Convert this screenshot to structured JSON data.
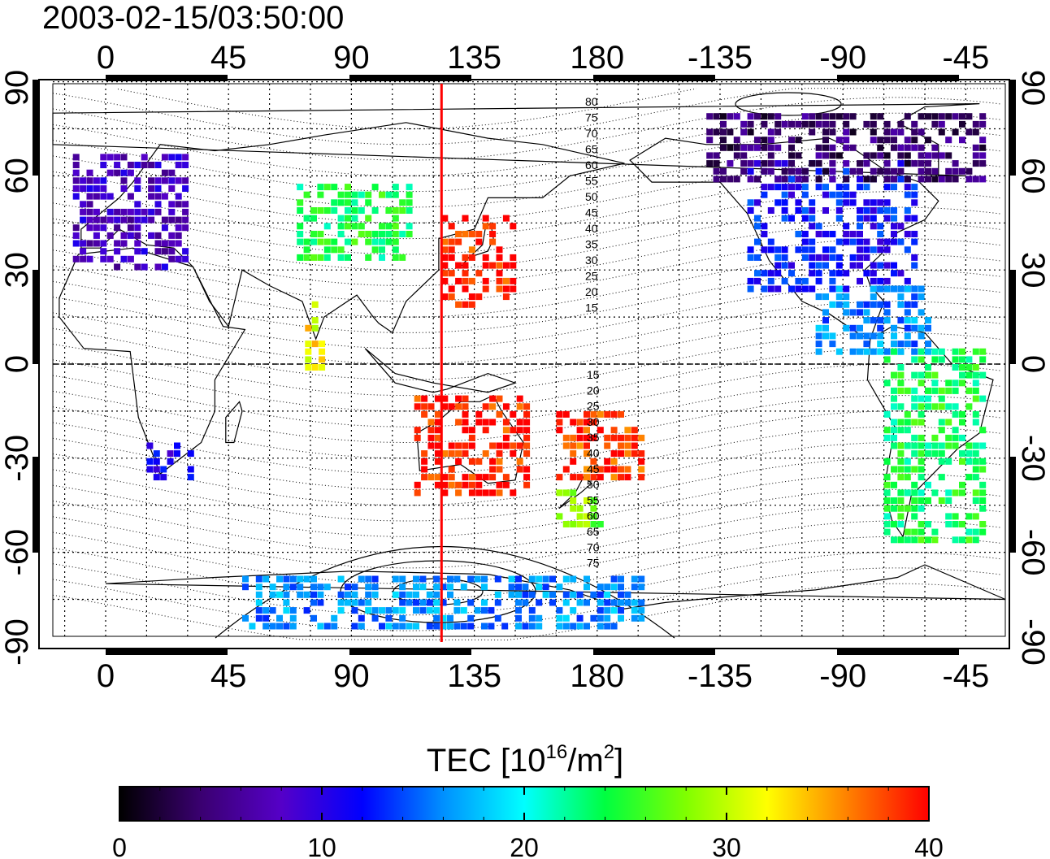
{
  "title": "2003-02-15/03:50:00",
  "map": {
    "lon_center": 135,
    "meridian_lon": 123,
    "top_lon_ticks": [
      "0",
      "45",
      "90",
      "135",
      "180",
      "-135",
      "-90",
      "-45"
    ],
    "bottom_lon_ticks": [
      "0",
      "45",
      "90",
      "135",
      "180",
      "-135",
      "-90",
      "-45"
    ],
    "lon_tick_values": [
      0,
      45,
      90,
      135,
      180,
      225,
      270,
      315
    ],
    "left_lat_ticks": [
      "90",
      "60",
      "30",
      "0",
      "-30",
      "-60",
      "-90"
    ],
    "right_lat_ticks": [
      "90",
      "60",
      "30",
      "0",
      "-30",
      "-60",
      "-90"
    ],
    "lat_tick_values": [
      90,
      60,
      30,
      0,
      -30,
      -60,
      -90
    ],
    "contour_labels": [
      "80",
      "75",
      "70",
      "65",
      "60",
      "55",
      "50",
      "45",
      "40",
      "35",
      "30",
      "25",
      "20",
      "15",
      "15",
      "20",
      "25",
      "30",
      "35",
      "40",
      "45",
      "50",
      "55",
      "60",
      "65",
      "70",
      "75"
    ],
    "meridian_color": "#ff0000",
    "grid": "dotted"
  },
  "colorbar": {
    "title_prefix": "TEC  [10",
    "title_sup1": "16",
    "title_mid": "/m",
    "title_sup2": "2",
    "title_suffix": "]",
    "min": 0,
    "max": 40,
    "tick_labels": [
      "0",
      "10",
      "20",
      "30",
      "40"
    ],
    "colors": [
      "#000000",
      "#3a0070",
      "#5500c8",
      "#0000ff",
      "#0090ff",
      "#00ffff",
      "#00ff40",
      "#80ff00",
      "#ffff00",
      "#ff8000",
      "#ff0000"
    ]
  },
  "tec_regions": [
    {
      "name": "europe",
      "lon": [
        -12,
        28
      ],
      "lat": [
        32,
        68
      ],
      "tec": 8
    },
    {
      "name": "north-america",
      "lon": [
        -125,
        -65
      ],
      "lat": [
        25,
        65
      ],
      "tec": 12
    },
    {
      "name": "arctic",
      "lon": [
        -140,
        -40
      ],
      "lat": [
        60,
        82
      ],
      "tec": 4
    },
    {
      "name": "east-asia",
      "lon": [
        123,
        150
      ],
      "lat": [
        20,
        48
      ],
      "tec": 39
    },
    {
      "name": "central-asia",
      "lon": [
        70,
        110
      ],
      "lat": [
        35,
        58
      ],
      "tec": 24
    },
    {
      "name": "australia",
      "lon": [
        113,
        155
      ],
      "lat": [
        -40,
        -10
      ],
      "tec": 39
    },
    {
      "name": "south-pacific",
      "lon": [
        165,
        195
      ],
      "lat": [
        -35,
        -15
      ],
      "tec": 38
    },
    {
      "name": "new-zealand",
      "lon": [
        165,
        180
      ],
      "lat": [
        -50,
        -38
      ],
      "tec": 28
    },
    {
      "name": "south-america",
      "lon": [
        -75,
        -40
      ],
      "lat": [
        -55,
        5
      ],
      "tec": 24
    },
    {
      "name": "southern-africa",
      "lon": [
        15,
        32
      ],
      "lat": [
        -35,
        -25
      ],
      "tec": 11
    },
    {
      "name": "antarctica",
      "lon": [
        50,
        195
      ],
      "lat": [
        -85,
        -66
      ],
      "tec": 16
    },
    {
      "name": "caribbean",
      "lon": [
        -100,
        -60
      ],
      "lat": [
        5,
        25
      ],
      "tec": 16
    },
    {
      "name": "india",
      "lon": [
        73,
        80
      ],
      "lat": [
        0,
        20
      ],
      "tec": 32
    }
  ]
}
